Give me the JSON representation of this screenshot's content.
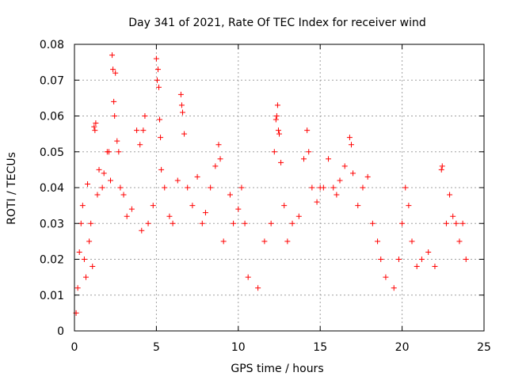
{
  "chart_data": {
    "type": "scatter",
    "title": "Day 341 of 2021, Rate Of TEC Index for receiver wind",
    "xlabel": "GPS time / hours",
    "ylabel": "ROTI / TECUs",
    "xlim": [
      0,
      25
    ],
    "ylim": [
      0,
      0.08
    ],
    "xticks": [
      "0",
      "5",
      "10",
      "15",
      "20",
      "25"
    ],
    "yticks": [
      "0",
      "0.01",
      "0.02",
      "0.03",
      "0.04",
      "0.05",
      "0.06",
      "0.07",
      "0.08"
    ],
    "grid": true,
    "marker": "plus",
    "color": "#ff0000",
    "series": [
      {
        "points": [
          [
            0.1,
            0.005
          ],
          [
            0.2,
            0.012
          ],
          [
            0.3,
            0.022
          ],
          [
            0.4,
            0.03
          ],
          [
            0.5,
            0.035
          ],
          [
            0.6,
            0.02
          ],
          [
            0.7,
            0.015
          ],
          [
            0.8,
            0.041
          ],
          [
            0.9,
            0.025
          ],
          [
            1.0,
            0.03
          ],
          [
            1.1,
            0.018
          ],
          [
            1.2,
            0.057
          ],
          [
            1.25,
            0.056
          ],
          [
            1.3,
            0.058
          ],
          [
            1.4,
            0.038
          ],
          [
            1.5,
            0.045
          ],
          [
            1.7,
            0.04
          ],
          [
            1.8,
            0.044
          ],
          [
            2.0,
            0.05
          ],
          [
            2.1,
            0.05
          ],
          [
            2.2,
            0.042
          ],
          [
            2.3,
            0.077
          ],
          [
            2.35,
            0.073
          ],
          [
            2.4,
            0.064
          ],
          [
            2.45,
            0.06
          ],
          [
            2.5,
            0.072
          ],
          [
            2.6,
            0.053
          ],
          [
            2.7,
            0.05
          ],
          [
            2.8,
            0.04
          ],
          [
            3.0,
            0.038
          ],
          [
            3.2,
            0.032
          ],
          [
            3.5,
            0.034
          ],
          [
            3.8,
            0.056
          ],
          [
            4.0,
            0.052
          ],
          [
            4.1,
            0.028
          ],
          [
            4.2,
            0.056
          ],
          [
            4.3,
            0.06
          ],
          [
            4.5,
            0.03
          ],
          [
            4.8,
            0.035
          ],
          [
            5.0,
            0.076
          ],
          [
            5.05,
            0.07
          ],
          [
            5.1,
            0.073
          ],
          [
            5.15,
            0.068
          ],
          [
            5.2,
            0.059
          ],
          [
            5.25,
            0.054
          ],
          [
            5.3,
            0.045
          ],
          [
            5.5,
            0.04
          ],
          [
            5.8,
            0.032
          ],
          [
            6.0,
            0.03
          ],
          [
            6.3,
            0.042
          ],
          [
            6.5,
            0.066
          ],
          [
            6.55,
            0.063
          ],
          [
            6.6,
            0.061
          ],
          [
            6.7,
            0.055
          ],
          [
            6.9,
            0.04
          ],
          [
            7.2,
            0.035
          ],
          [
            7.5,
            0.043
          ],
          [
            7.8,
            0.03
          ],
          [
            8.0,
            0.033
          ],
          [
            8.3,
            0.04
          ],
          [
            8.6,
            0.046
          ],
          [
            8.8,
            0.052
          ],
          [
            8.9,
            0.048
          ],
          [
            9.1,
            0.025
          ],
          [
            9.5,
            0.038
          ],
          [
            9.7,
            0.03
          ],
          [
            10.0,
            0.034
          ],
          [
            10.2,
            0.04
          ],
          [
            10.4,
            0.03
          ],
          [
            10.6,
            0.015
          ],
          [
            11.2,
            0.012
          ],
          [
            11.6,
            0.025
          ],
          [
            12.0,
            0.03
          ],
          [
            12.2,
            0.05
          ],
          [
            12.3,
            0.059
          ],
          [
            12.35,
            0.06
          ],
          [
            12.4,
            0.063
          ],
          [
            12.45,
            0.056
          ],
          [
            12.5,
            0.055
          ],
          [
            12.6,
            0.047
          ],
          [
            12.8,
            0.035
          ],
          [
            13.0,
            0.025
          ],
          [
            13.3,
            0.03
          ],
          [
            13.7,
            0.032
          ],
          [
            14.0,
            0.048
          ],
          [
            14.2,
            0.056
          ],
          [
            14.3,
            0.05
          ],
          [
            14.5,
            0.04
          ],
          [
            14.8,
            0.036
          ],
          [
            15.0,
            0.04
          ],
          [
            15.2,
            0.04
          ],
          [
            15.5,
            0.048
          ],
          [
            15.8,
            0.04
          ],
          [
            16.0,
            0.038
          ],
          [
            16.2,
            0.042
          ],
          [
            16.5,
            0.046
          ],
          [
            16.8,
            0.054
          ],
          [
            16.9,
            0.052
          ],
          [
            17.0,
            0.044
          ],
          [
            17.3,
            0.035
          ],
          [
            17.6,
            0.04
          ],
          [
            17.9,
            0.043
          ],
          [
            18.2,
            0.03
          ],
          [
            18.5,
            0.025
          ],
          [
            18.7,
            0.02
          ],
          [
            19.0,
            0.015
          ],
          [
            19.5,
            0.012
          ],
          [
            19.8,
            0.02
          ],
          [
            20.0,
            0.03
          ],
          [
            20.2,
            0.04
          ],
          [
            20.4,
            0.035
          ],
          [
            20.6,
            0.025
          ],
          [
            20.9,
            0.018
          ],
          [
            21.2,
            0.02
          ],
          [
            21.6,
            0.022
          ],
          [
            22.0,
            0.018
          ],
          [
            22.4,
            0.045
          ],
          [
            22.45,
            0.046
          ],
          [
            22.7,
            0.03
          ],
          [
            22.9,
            0.038
          ],
          [
            23.1,
            0.032
          ],
          [
            23.3,
            0.03
          ],
          [
            23.5,
            0.025
          ],
          [
            23.7,
            0.03
          ],
          [
            23.9,
            0.02
          ]
        ]
      }
    ]
  }
}
